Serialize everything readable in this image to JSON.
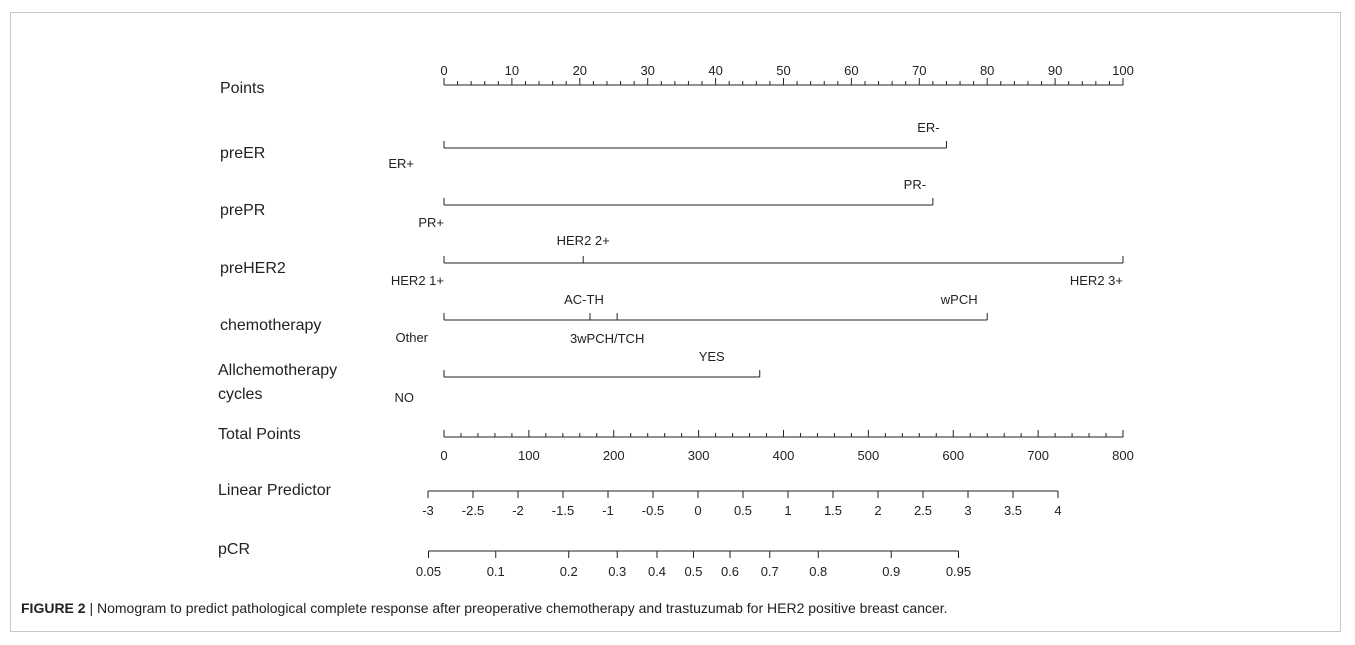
{
  "chart_data": {
    "type": "nomogram",
    "caption": {
      "label": "FIGURE 2",
      "separator": "|",
      "text": "Nomogram to predict pathological complete response after preoperative chemotherapy and trastuzumab for HER2 positive breast cancer."
    },
    "points_scale": {
      "label": "Points",
      "range": [
        0,
        100
      ],
      "major_ticks": [
        0,
        10,
        20,
        30,
        40,
        50,
        60,
        70,
        80,
        90,
        100
      ],
      "minor_step": 2
    },
    "variables": [
      {
        "name": "preER",
        "line_range": [
          0,
          74
        ],
        "levels": [
          {
            "label": "ER+",
            "points": 0
          },
          {
            "label": "ER-",
            "points": 74
          }
        ]
      },
      {
        "name": "prePR",
        "line_range": [
          0,
          72
        ],
        "levels": [
          {
            "label": "PR+",
            "points": 0
          },
          {
            "label": "PR-",
            "points": 72
          }
        ]
      },
      {
        "name": "preHER2",
        "line_range": [
          0,
          100
        ],
        "levels": [
          {
            "label": "HER2 1+",
            "points": 0
          },
          {
            "label": "HER2 2+",
            "points": 20.5
          },
          {
            "label": "HER2 3+",
            "points": 100
          }
        ]
      },
      {
        "name": "chemotherapy",
        "line_range": [
          0,
          80
        ],
        "levels": [
          {
            "label": "Other",
            "points": 0
          },
          {
            "label": "AC-TH",
            "points": 21.5
          },
          {
            "label": "3wPCH/TCH",
            "points": 25.5
          },
          {
            "label": "wPCH",
            "points": 80
          }
        ]
      },
      {
        "name": "Allchemotherapy cycles",
        "name_lines": [
          "Allchemotherapy",
          "cycles"
        ],
        "line_range": [
          0,
          46.5
        ],
        "levels": [
          {
            "label": "NO",
            "points": 0
          },
          {
            "label": "YES",
            "points": 46.5
          }
        ]
      }
    ],
    "total_points_scale": {
      "label": "Total Points",
      "range": [
        0,
        800
      ],
      "major_ticks": [
        0,
        100,
        200,
        300,
        400,
        500,
        600,
        700,
        800
      ],
      "minor_step": 20
    },
    "linear_predictor_scale": {
      "label": "Linear Predictor",
      "range": [
        -3,
        4
      ],
      "ticks": [
        -3,
        -2.5,
        -2,
        -1.5,
        -1,
        -0.5,
        0,
        0.5,
        1,
        1.5,
        2,
        2.5,
        3,
        3.5,
        4
      ],
      "tick_labels": [
        "-3",
        "-2.5",
        "-2",
        "-1.5",
        "-1",
        "-0.5",
        "0",
        "0.5",
        "1",
        "1.5",
        "2",
        "2.5",
        "3",
        "3.5",
        "4"
      ]
    },
    "pcr_scale": {
      "label": "pCR",
      "ticks": [
        0.05,
        0.1,
        0.2,
        0.3,
        0.4,
        0.5,
        0.6,
        0.7,
        0.8,
        0.9,
        0.95
      ],
      "tick_labels": [
        "0.05",
        "0.1",
        "0.2",
        "0.3",
        "0.4",
        "0.5",
        "0.6",
        "0.7",
        "0.8",
        "0.9",
        "0.95"
      ]
    }
  }
}
